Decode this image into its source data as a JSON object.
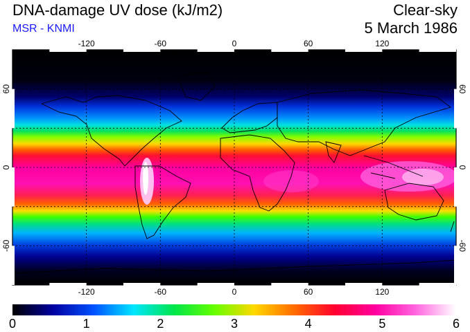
{
  "header": {
    "title": "DNA-damage UV dose (kJ/m2)",
    "subtitle": "MSR - KNMI",
    "sky_condition": "Clear-sky",
    "date": "5 March 1986"
  },
  "map": {
    "projection": "equirectangular",
    "lon_range": [
      -180,
      180
    ],
    "lat_range": [
      -90,
      90
    ],
    "grid_lon": [
      -120,
      -60,
      0,
      60,
      120
    ],
    "grid_lat": [
      -60,
      -30,
      0,
      30,
      60
    ],
    "top_ticks": [
      "-120",
      "-60",
      "0",
      "60",
      "120"
    ],
    "bottom_ticks": [
      "-120",
      "-60",
      "0",
      "60",
      "120"
    ],
    "left_ticks": [
      "60",
      "0",
      "-60"
    ],
    "right_ticks": [
      "60",
      "0",
      "-60"
    ],
    "grid_line_style": "dotted",
    "frame_color": "#000000"
  },
  "colorbar": {
    "min": 0,
    "max": 6,
    "tick_labels": [
      "0",
      "1",
      "2",
      "3",
      "4",
      "5",
      "6"
    ],
    "colors": [
      "#000000",
      "#0000a0",
      "#0050ff",
      "#00e6ff",
      "#00e64a",
      "#66ff00",
      "#ffd800",
      "#ff6a00",
      "#ff0030",
      "#ff00a0",
      "#ff66e0",
      "#ffffff"
    ]
  }
}
